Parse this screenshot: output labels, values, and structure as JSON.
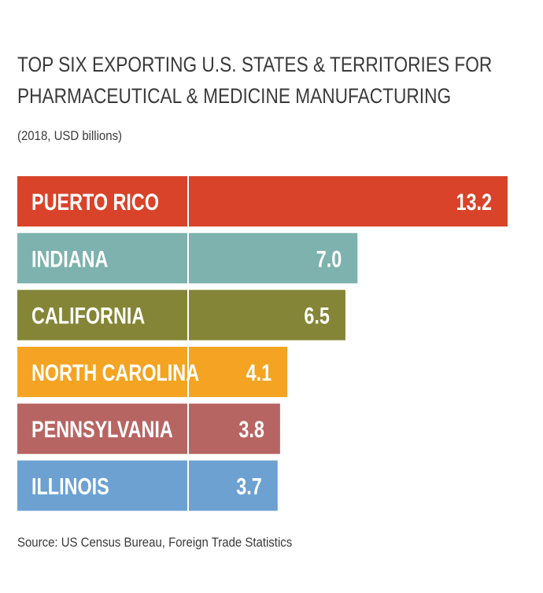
{
  "chart_data": {
    "type": "bar",
    "orientation": "horizontal",
    "title": "TOP SIX EXPORTING U.S. STATES & TERRITORIES FOR PHARMACEUTICAL & MEDICINE MANUFACTURING",
    "subtitle": "(2018, USD billions)",
    "categories": [
      "PUERTO RICO",
      "INDIANA",
      "CALIFORNIA",
      "NORTH CAROLINA",
      "PENNSYLVANIA",
      "ILLINOIS"
    ],
    "values": [
      13.2,
      7.0,
      6.5,
      4.1,
      3.8,
      3.7
    ],
    "value_labels": [
      "13.2",
      "7.0",
      "6.5",
      "4.1",
      "3.8",
      "3.7"
    ],
    "colors": [
      "#d9432a",
      "#7db2ae",
      "#848536",
      "#f4a422",
      "#b76563",
      "#6ca1d2"
    ],
    "xlim": [
      0,
      13.2
    ],
    "grid": false,
    "legend": "none"
  },
  "source": "Source: US Census Bureau, Foreign Trade Statistics"
}
